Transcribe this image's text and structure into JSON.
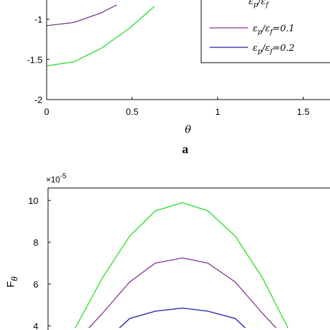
{
  "colors": {
    "green": "#22dd22",
    "purple": "#7e2f8e",
    "blue": "#1a1aa8",
    "axis": "#000000",
    "background": "#ffffff"
  },
  "chart_data": [
    {
      "type": "line",
      "panel_label": "a",
      "xlabel": "θ",
      "ylabel": "",
      "xlim": [
        0,
        1.6
      ],
      "ylim": [
        -2,
        -0.5
      ],
      "x_ticks": [
        "0",
        "0.5",
        "1",
        "1.5"
      ],
      "y_ticks": [
        "-1",
        "-1.5",
        "-2"
      ],
      "legend": {
        "placement": "top-right",
        "entries": [
          {
            "label": "ϵ_p/ϵ_f",
            "color": "#000000",
            "partial": true
          },
          {
            "label": "ϵ_p/ϵ_f=0.1",
            "color": "#7e2f8e"
          },
          {
            "label": "ϵ_p/ϵ_f=0.2",
            "color": "#1a1aa8"
          }
        ]
      },
      "series": [
        {
          "color": "#7e2f8e",
          "x": [
            0,
            0.16,
            0.32,
            0.41
          ],
          "y": [
            -1.08,
            -1.04,
            -0.92,
            -0.82
          ]
        },
        {
          "color": "#22dd22",
          "x": [
            0,
            0.16,
            0.32,
            0.48,
            0.63
          ],
          "y": [
            -1.58,
            -1.53,
            -1.36,
            -1.12,
            -0.84
          ]
        }
      ]
    },
    {
      "type": "line",
      "xlabel": "",
      "ylabel": "F_θ",
      "y_exponent": "×10^-5",
      "xlim": [
        0,
        1.6
      ],
      "ylim": [
        3.8,
        10.6
      ],
      "y_ticks": [
        "10",
        "8",
        "6",
        "4"
      ],
      "series": [
        {
          "color": "#22dd22",
          "x": [
            0.16,
            0.32,
            0.48,
            0.63,
            0.79,
            0.94,
            1.1,
            1.26,
            1.41
          ],
          "y": [
            3.9,
            6.3,
            8.3,
            9.5,
            9.9,
            9.5,
            8.3,
            6.3,
            3.9
          ]
        },
        {
          "color": "#7e2f8e",
          "x": [
            0.24,
            0.32,
            0.48,
            0.63,
            0.79,
            0.94,
            1.1,
            1.26,
            1.34
          ],
          "y": [
            3.9,
            4.6,
            6.1,
            7.0,
            7.25,
            7.0,
            6.1,
            4.6,
            3.9
          ]
        },
        {
          "color": "#1a1aa8",
          "x": [
            0.42,
            0.48,
            0.63,
            0.79,
            0.94,
            1.1,
            1.16
          ],
          "y": [
            3.9,
            4.35,
            4.7,
            4.85,
            4.7,
            4.35,
            3.9
          ]
        }
      ]
    }
  ]
}
